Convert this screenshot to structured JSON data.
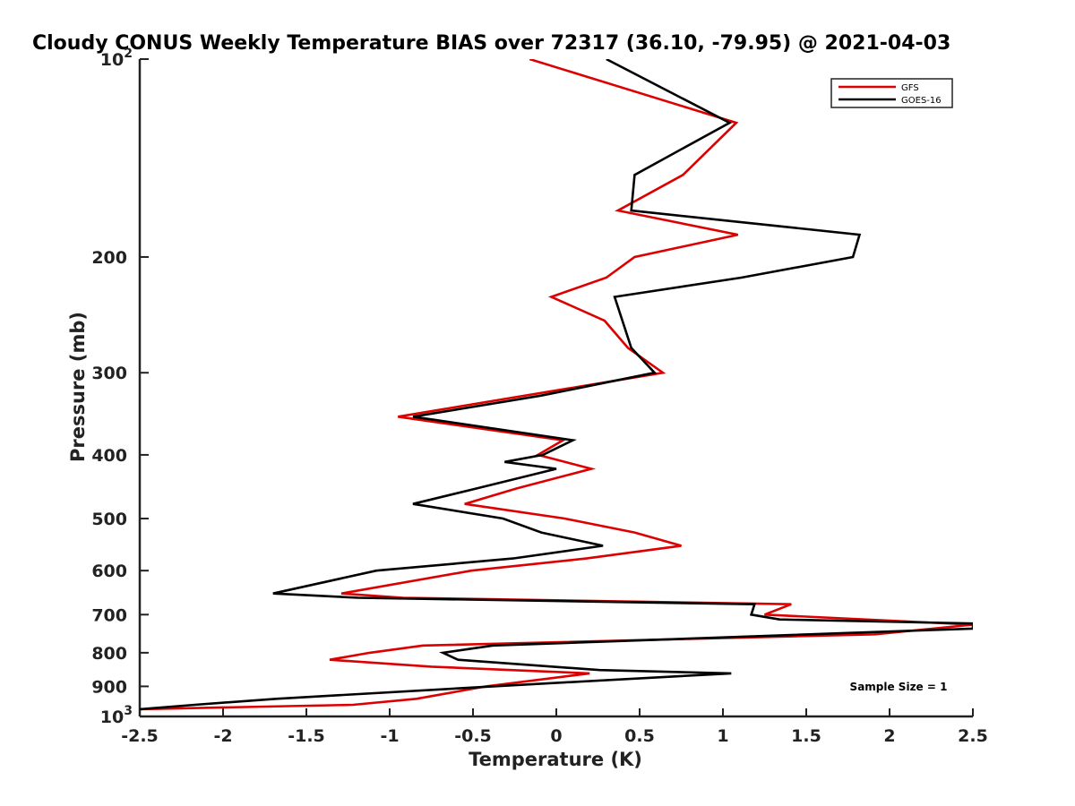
{
  "chart_data": {
    "type": "line",
    "title": "Cloudy CONUS Weekly Temperature BIAS over 72317 (36.10, -79.95) @ 2021-04-03",
    "xlabel": "Temperature (K)",
    "ylabel": "Pressure (mb)",
    "xlim": [
      -2.5,
      2.5
    ],
    "ylim": [
      100,
      1000
    ],
    "yscale": "log",
    "y_reversed": true,
    "x_ticks": [
      "-2.5",
      "-2",
      "-1.5",
      "-1",
      "-0.5",
      "0",
      "0.5",
      "1",
      "1.5",
      "2",
      "2.5"
    ],
    "y_ticks": [
      {
        "value": 100,
        "label": "10",
        "sup": "2"
      },
      {
        "value": 200,
        "label": "200",
        "sup": ""
      },
      {
        "value": 300,
        "label": "300",
        "sup": ""
      },
      {
        "value": 400,
        "label": "400",
        "sup": ""
      },
      {
        "value": 500,
        "label": "500",
        "sup": ""
      },
      {
        "value": 600,
        "label": "600",
        "sup": ""
      },
      {
        "value": 700,
        "label": "700",
        "sup": ""
      },
      {
        "value": 800,
        "label": "800",
        "sup": ""
      },
      {
        "value": 900,
        "label": "900",
        "sup": ""
      },
      {
        "value": 1000,
        "label": "10",
        "sup": "3"
      }
    ],
    "grid": false,
    "legend_position": "top-right",
    "annotation": "Sample Size = 1",
    "series": [
      {
        "name": "GFS",
        "color": "#dd0000",
        "points": [
          [
            -0.16,
            100
          ],
          [
            1.08,
            125
          ],
          [
            0.76,
            150
          ],
          [
            0.37,
            170
          ],
          [
            1.09,
            185
          ],
          [
            0.47,
            200
          ],
          [
            0.3,
            215
          ],
          [
            -0.03,
            230
          ],
          [
            0.29,
            250
          ],
          [
            0.43,
            275
          ],
          [
            0.64,
            300
          ],
          [
            -0.95,
            350
          ],
          [
            0.04,
            380
          ],
          [
            -0.11,
            400
          ],
          [
            0.21,
            420
          ],
          [
            -0.24,
            450
          ],
          [
            -0.55,
            475
          ],
          [
            0.05,
            500
          ],
          [
            0.47,
            525
          ],
          [
            0.75,
            550
          ],
          [
            0.18,
            575
          ],
          [
            -0.51,
            600
          ],
          [
            -1.29,
            650
          ],
          [
            -0.92,
            660
          ],
          [
            1.41,
            675
          ],
          [
            1.25,
            700
          ],
          [
            2.5,
            725
          ],
          [
            1.91,
            750
          ],
          [
            -0.8,
            780
          ],
          [
            -1.12,
            800
          ],
          [
            -1.36,
            820
          ],
          [
            -0.75,
            840
          ],
          [
            0.2,
            860
          ],
          [
            -0.42,
            900
          ],
          [
            -0.84,
            940
          ],
          [
            -1.22,
            960
          ],
          [
            -2.5,
            975
          ]
        ]
      },
      {
        "name": "GOES-16",
        "color": "#000000",
        "points": [
          [
            0.3,
            100
          ],
          [
            1.04,
            125
          ],
          [
            0.47,
            150
          ],
          [
            0.45,
            170
          ],
          [
            1.82,
            185
          ],
          [
            1.78,
            200
          ],
          [
            1.11,
            215
          ],
          [
            0.35,
            230
          ],
          [
            0.45,
            275
          ],
          [
            0.59,
            300
          ],
          [
            -0.09,
            325
          ],
          [
            -0.86,
            350
          ],
          [
            0.1,
            380
          ],
          [
            -0.08,
            400
          ],
          [
            -0.31,
            410
          ],
          [
            0.0,
            420
          ],
          [
            -0.48,
            450
          ],
          [
            -0.86,
            475
          ],
          [
            -0.32,
            500
          ],
          [
            -0.09,
            525
          ],
          [
            0.28,
            550
          ],
          [
            -0.26,
            575
          ],
          [
            -1.08,
            600
          ],
          [
            -1.7,
            650
          ],
          [
            -1.19,
            660
          ],
          [
            1.19,
            675
          ],
          [
            1.17,
            700
          ],
          [
            1.34,
            712
          ],
          [
            2.5,
            722
          ],
          [
            2.5,
            735
          ],
          [
            -0.38,
            780
          ],
          [
            -0.68,
            800
          ],
          [
            -0.59,
            820
          ],
          [
            0.26,
            850
          ],
          [
            1.05,
            860
          ],
          [
            -0.38,
            900
          ],
          [
            -1.68,
            940
          ],
          [
            -2.17,
            960
          ],
          [
            -2.5,
            975
          ]
        ]
      }
    ]
  }
}
